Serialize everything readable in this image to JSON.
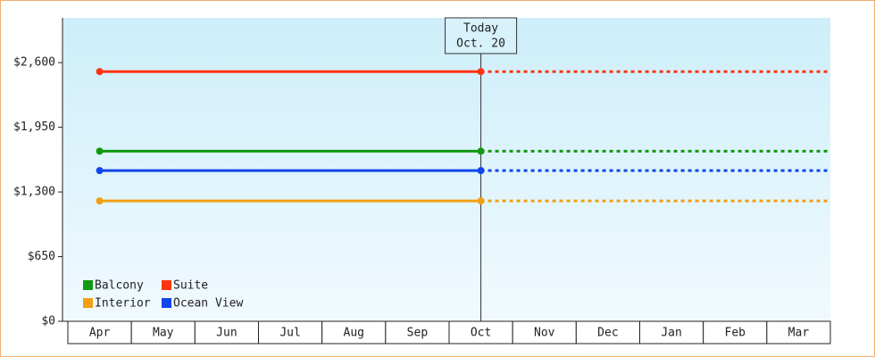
{
  "chart_data": {
    "type": "line",
    "categories": [
      "Apr",
      "May",
      "Jun",
      "Jul",
      "Aug",
      "Sep",
      "Oct",
      "Nov",
      "Dec",
      "Jan",
      "Feb",
      "Mar"
    ],
    "series": [
      {
        "name": "Balcony",
        "color": "#119911",
        "values": [
          1710,
          1710,
          1710,
          1710,
          1710,
          1710,
          1710,
          null,
          null,
          null,
          null,
          null
        ]
      },
      {
        "name": "Suite",
        "color": "#ff3311",
        "values": [
          2510,
          2510,
          2510,
          2510,
          2510,
          2510,
          2510,
          null,
          null,
          null,
          null,
          null
        ]
      },
      {
        "name": "Interior",
        "color": "#f0a010",
        "values": [
          1210,
          1210,
          1210,
          1210,
          1210,
          1210,
          1210,
          null,
          null,
          null,
          null,
          null
        ]
      },
      {
        "name": "Ocean View",
        "color": "#1144ee",
        "values": [
          1515,
          1515,
          1515,
          1515,
          1515,
          1515,
          1515,
          null,
          null,
          null,
          null,
          null
        ]
      }
    ],
    "ylim": [
      0,
      3050
    ],
    "yticks": [
      {
        "value": 0,
        "label": "$0"
      },
      {
        "value": 650,
        "label": "$650"
      },
      {
        "value": 1300,
        "label": "$1,300"
      },
      {
        "value": 1950,
        "label": "$1,950"
      },
      {
        "value": 2600,
        "label": "$2,600"
      }
    ],
    "annotation": {
      "lines": [
        "Today",
        "Oct. 20"
      ],
      "category_index": 6
    },
    "legend": "bottom-left",
    "projection": "dotted"
  }
}
